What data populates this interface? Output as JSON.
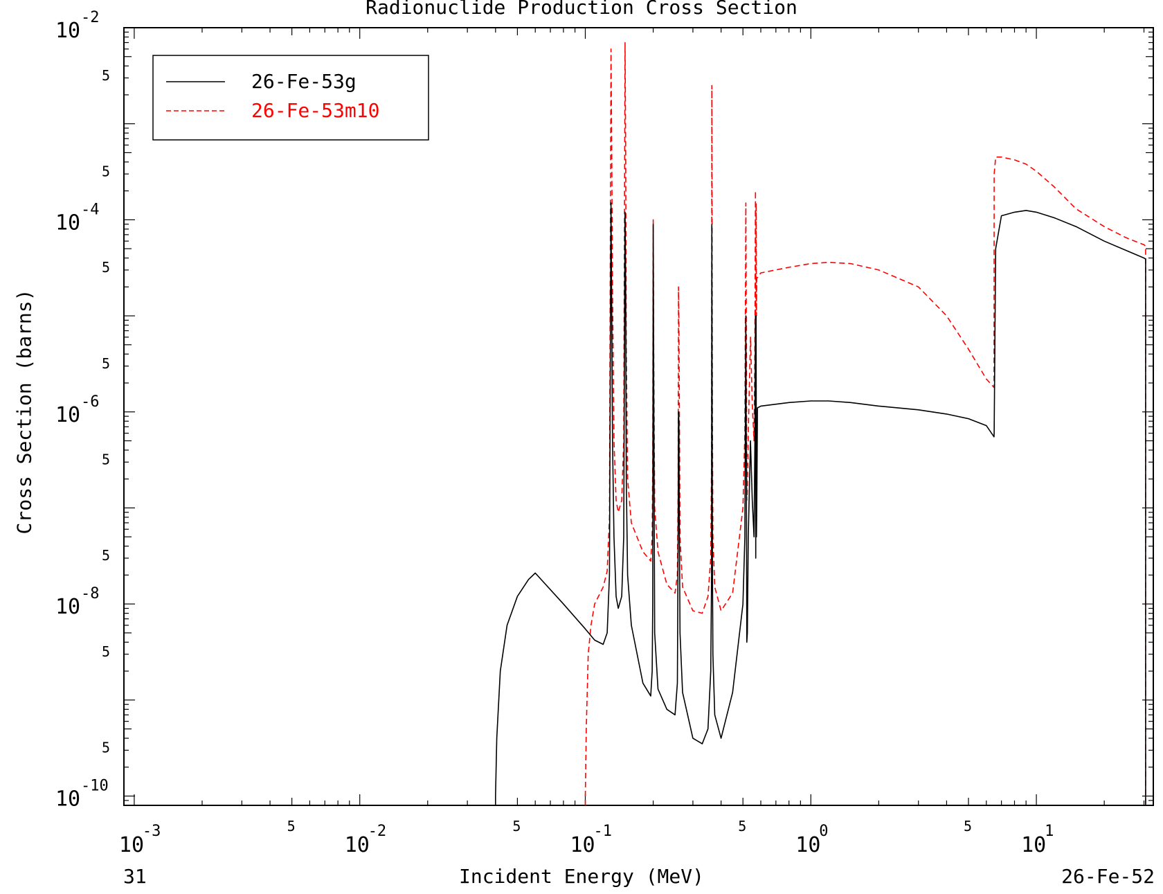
{
  "chart_data": {
    "type": "line",
    "title": "Radionuclide Production Cross Section",
    "xlabel": "Incident Energy (MeV)",
    "ylabel": "Cross Section (barns)",
    "x_scale": "log",
    "y_scale": "log",
    "xlim": [
      0.0009,
      33
    ],
    "ylim": [
      8e-11,
      0.01
    ],
    "x_ticks": [
      {
        "value": 0.001,
        "label": "10",
        "exp": "-3"
      },
      {
        "value": 0.005,
        "label": "5"
      },
      {
        "value": 0.01,
        "label": "10",
        "exp": "-2"
      },
      {
        "value": 0.05,
        "label": "5"
      },
      {
        "value": 0.1,
        "label": "10",
        "exp": "-1"
      },
      {
        "value": 0.5,
        "label": "5"
      },
      {
        "value": 1,
        "label": "10",
        "exp": "0"
      },
      {
        "value": 5,
        "label": "5"
      },
      {
        "value": 10,
        "label": "10",
        "exp": "1"
      }
    ],
    "y_ticks": [
      {
        "value": 1e-10,
        "label": "10",
        "exp": "-10"
      },
      {
        "value": 5e-10,
        "label": "5"
      },
      {
        "value": 5e-09,
        "label": "5"
      },
      {
        "value": 1e-08,
        "label": "10",
        "exp": "-8"
      },
      {
        "value": 5e-08,
        "label": "5"
      },
      {
        "value": 5e-07,
        "label": "5"
      },
      {
        "value": 1e-06,
        "label": "10",
        "exp": "-6"
      },
      {
        "value": 5e-06,
        "label": "5"
      },
      {
        "value": 5e-05,
        "label": "5"
      },
      {
        "value": 0.0001,
        "label": "10",
        "exp": "-4"
      },
      {
        "value": 0.0005,
        "label": "5"
      },
      {
        "value": 0.005,
        "label": "5"
      },
      {
        "value": 0.01,
        "label": "10",
        "exp": "-2"
      }
    ],
    "legend_position": "top-left",
    "series": [
      {
        "name": "26-Fe-53g",
        "color": "#000000",
        "dash": "solid",
        "x": [
          0.04,
          0.04,
          0.0405,
          0.042,
          0.045,
          0.05,
          0.056,
          0.06,
          0.08,
          0.1,
          0.11,
          0.12,
          0.125,
          0.128,
          0.13,
          0.131,
          0.132,
          0.134,
          0.137,
          0.14,
          0.145,
          0.148,
          0.15,
          0.151,
          0.152,
          0.154,
          0.16,
          0.18,
          0.195,
          0.198,
          0.199,
          0.2,
          0.201,
          0.203,
          0.21,
          0.23,
          0.25,
          0.256,
          0.258,
          0.259,
          0.26,
          0.261,
          0.263,
          0.27,
          0.3,
          0.33,
          0.35,
          0.36,
          0.363,
          0.364,
          0.365,
          0.366,
          0.368,
          0.375,
          0.4,
          0.45,
          0.5,
          0.51,
          0.515,
          0.518,
          0.52,
          0.523,
          0.528,
          0.54,
          0.55,
          0.56,
          0.565,
          0.568,
          0.57,
          0.572,
          0.574,
          0.576,
          0.58,
          0.6,
          0.8,
          1.0,
          1.2,
          1.5,
          2,
          3,
          4,
          5,
          6,
          6.49,
          6.5,
          6.6,
          7,
          8,
          9,
          10,
          12,
          15,
          20,
          25,
          30,
          30.5,
          30.5
        ],
        "y": [
          8e-11,
          1e-10,
          4e-10,
          2e-09,
          6e-09,
          1.2e-08,
          1.8e-08,
          2.1e-08,
          1e-08,
          5.5e-09,
          4.2e-09,
          3.8e-09,
          5e-09,
          2e-08,
          0.00015,
          1e-05,
          5e-07,
          5e-08,
          1.2e-08,
          9e-09,
          1.2e-08,
          5e-08,
          0.00012,
          2e-05,
          2e-07,
          2e-08,
          6e-09,
          1.5e-09,
          1.1e-09,
          2e-09,
          1e-08,
          9e-05,
          2e-06,
          5e-09,
          1.3e-09,
          8e-10,
          7e-10,
          1.5e-09,
          5e-08,
          1e-06,
          8e-07,
          1e-07,
          5e-09,
          1.2e-09,
          4e-10,
          3.5e-10,
          5e-10,
          2e-09,
          2e-08,
          9e-05,
          1e-06,
          3e-08,
          3e-09,
          7e-10,
          4e-10,
          1.2e-09,
          1e-08,
          5e-08,
          1e-05,
          2e-07,
          4e-09,
          5e-09,
          5e-08,
          5e-07,
          1.2e-07,
          5e-08,
          5e-07,
          1e-05,
          3e-08,
          1e-05,
          5e-08,
          1e-07,
          1.1e-06,
          1.15e-06,
          1.25e-06,
          1.3e-06,
          1.3e-06,
          1.25e-06,
          1.15e-06,
          1.05e-06,
          9.5e-07,
          8.5e-07,
          7.2e-07,
          5.5e-07,
          6e-07,
          5e-05,
          0.00011,
          0.00012,
          0.000125,
          0.00012,
          0.000105,
          8.5e-05,
          6e-05,
          4.8e-05,
          4e-05,
          3.9e-05,
          8e-11
        ]
      },
      {
        "name": "26-Fe-53m10",
        "color": "#ff0000",
        "dash": "dashed",
        "x": [
          0.1,
          0.1,
          0.101,
          0.103,
          0.106,
          0.11,
          0.12,
          0.125,
          0.128,
          0.13,
          0.131,
          0.132,
          0.134,
          0.137,
          0.14,
          0.145,
          0.148,
          0.15,
          0.151,
          0.152,
          0.154,
          0.16,
          0.18,
          0.195,
          0.198,
          0.199,
          0.2,
          0.201,
          0.203,
          0.21,
          0.23,
          0.25,
          0.256,
          0.258,
          0.259,
          0.26,
          0.261,
          0.263,
          0.27,
          0.3,
          0.33,
          0.35,
          0.36,
          0.363,
          0.364,
          0.365,
          0.366,
          0.368,
          0.375,
          0.4,
          0.45,
          0.5,
          0.51,
          0.515,
          0.518,
          0.52,
          0.523,
          0.528,
          0.54,
          0.55,
          0.56,
          0.565,
          0.568,
          0.57,
          0.572,
          0.574,
          0.576,
          0.58,
          0.6,
          0.8,
          1.0,
          1.2,
          1.5,
          2,
          3,
          4,
          5,
          6,
          6.49,
          6.5,
          6.6,
          7,
          8,
          9,
          10,
          12,
          15,
          20,
          25,
          30,
          30.5,
          30.5
        ],
        "y": [
          8e-11,
          1e-10,
          5e-10,
          3e-09,
          6e-09,
          1e-08,
          1.5e-08,
          2.2e-08,
          8e-08,
          0.006,
          0.0005,
          2e-05,
          5e-07,
          1.2e-07,
          9e-08,
          1.2e-07,
          5e-07,
          0.007,
          0.0005,
          5e-06,
          2e-07,
          7e-08,
          3.5e-08,
          2.8e-08,
          5e-08,
          3e-07,
          0.0001,
          5e-06,
          1e-07,
          3.5e-08,
          1.6e-08,
          1.3e-08,
          2e-08,
          1.5e-07,
          2e-05,
          8e-06,
          2e-06,
          5e-08,
          1.5e-08,
          8.5e-09,
          8e-09,
          1.2e-08,
          3e-08,
          3e-07,
          0.0025,
          4e-05,
          8e-07,
          5e-08,
          1.5e-08,
          8.5e-09,
          1.3e-08,
          1e-07,
          6e-07,
          0.00015,
          5e-06,
          1.2e-07,
          1.5e-07,
          6e-07,
          6e-06,
          1.2e-06,
          5e-07,
          5e-06,
          0.0002,
          8e-07,
          0.00015,
          1e-05,
          2.5e-05,
          2.5e-05,
          2.8e-05,
          3.2e-05,
          3.5e-05,
          3.6e-05,
          3.5e-05,
          3e-05,
          2e-05,
          1e-05,
          4.5e-06,
          2.2e-06,
          1.8e-06,
          0.0003,
          0.00045,
          0.00045,
          0.00042,
          0.00038,
          0.00032,
          0.00022,
          0.00013,
          8.5e-05,
          6.5e-05,
          5.5e-05,
          5.3e-05,
          8e-11
        ]
      }
    ]
  },
  "footer": {
    "left_text": "31",
    "right_text": "26-Fe-52"
  }
}
